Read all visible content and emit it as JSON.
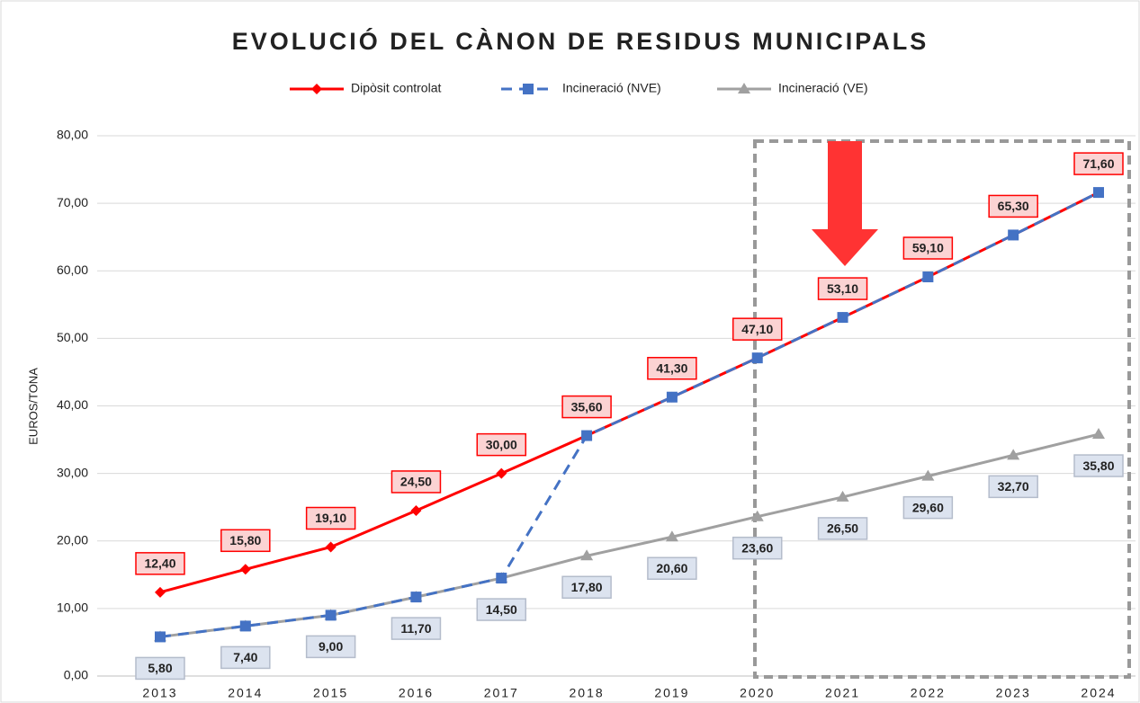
{
  "chart_data": {
    "type": "line",
    "title": "EVOLUCIÓ DEL CÀNON DE RESIDUS MUNICIPALS",
    "y_label": "EUROS/TONA",
    "categories": [
      "2013",
      "2014",
      "2015",
      "2016",
      "2017",
      "2018",
      "2019",
      "2020",
      "2021",
      "2022",
      "2023",
      "2024"
    ],
    "series": [
      {
        "name": "Dipòsit controlat",
        "color": "#ff0000",
        "marker": "diamond",
        "dash": false,
        "values": [
          12.4,
          15.8,
          19.1,
          24.5,
          30.0,
          35.6,
          41.3,
          47.1,
          53.1,
          59.1,
          65.3,
          71.6
        ],
        "value_labels": [
          "12,40",
          "15,80",
          "19,10",
          "24,50",
          "30,00",
          "35,60",
          "41,30",
          "47,10",
          "53,10",
          "59,10",
          "65,30",
          "71,60"
        ]
      },
      {
        "name": "Incineració (NVE)",
        "color": "#4472c4",
        "marker": "square",
        "dash": true,
        "values": [
          5.8,
          7.4,
          9.0,
          11.7,
          14.5,
          35.6,
          41.3,
          47.1,
          53.1,
          59.1,
          65.3,
          71.6
        ]
      },
      {
        "name": "Incineració (VE)",
        "color": "#a0a0a0",
        "marker": "triangle",
        "dash": false,
        "values": [
          5.8,
          7.4,
          9.0,
          11.7,
          14.5,
          17.8,
          20.6,
          23.6,
          26.5,
          29.6,
          32.7,
          35.8
        ],
        "value_labels": [
          "5,80",
          "7,40",
          "9,00",
          "11,70",
          "14,50",
          "17,80",
          "20,60",
          "23,60",
          "26,50",
          "29,60",
          "32,70",
          "35,80"
        ]
      }
    ],
    "ylim": [
      0,
      80
    ],
    "yticks": [
      {
        "value": 0,
        "label": "0,00"
      },
      {
        "value": 10,
        "label": "10,00"
      },
      {
        "value": 20,
        "label": "20,00"
      },
      {
        "value": 30,
        "label": "30,00"
      },
      {
        "value": 40,
        "label": "40,00"
      },
      {
        "value": 50,
        "label": "50,00"
      },
      {
        "value": 60,
        "label": "60,00"
      },
      {
        "value": 70,
        "label": "70,00"
      },
      {
        "value": 80,
        "label": "80,00"
      }
    ],
    "grid": true,
    "legend": "top"
  }
}
